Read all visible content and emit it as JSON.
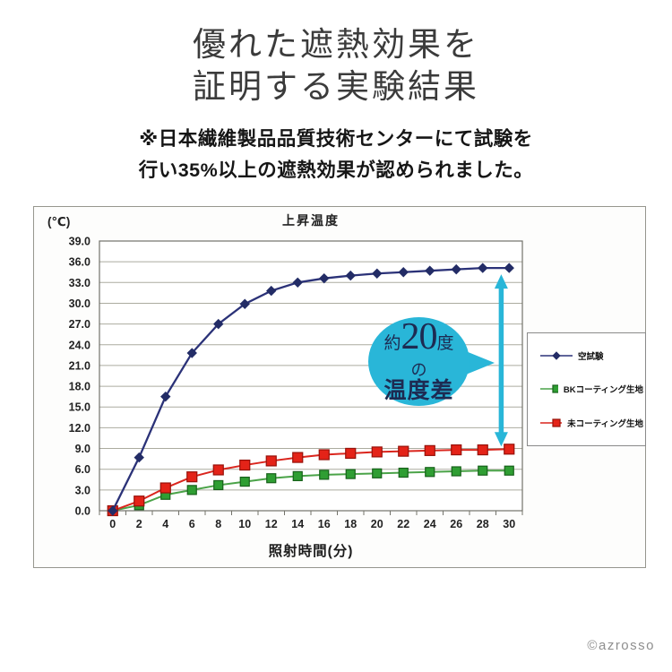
{
  "title": {
    "line1": "優れた遮熱効果を",
    "line2": "証明する実験結果"
  },
  "subtitle": {
    "line1": "※日本繊維製品品質技術センターにて試験を",
    "line2": "行い35%以上の遮熱効果が認められました。"
  },
  "chart_data": {
    "type": "line",
    "title": "上昇温度",
    "y_unit": "(℃)",
    "xlabel": "照射時間(分)",
    "x": [
      0,
      2,
      4,
      6,
      8,
      10,
      12,
      14,
      16,
      18,
      20,
      22,
      24,
      26,
      28,
      30
    ],
    "x_tick_labels": [
      "0",
      "2",
      "4",
      "6",
      "8",
      "10",
      "12",
      "14",
      "16",
      "18",
      "20",
      "22",
      "24",
      "26",
      "28",
      "30"
    ],
    "ylim": [
      0,
      39
    ],
    "y_tick_step": 3,
    "y_tick_labels": [
      "39.0",
      "36.0",
      "33.0",
      "30.0",
      "27.0",
      "24.0",
      "21.0",
      "18.0",
      "15.0",
      "12.0",
      "9.0",
      "6.0",
      "3.0",
      "0.0"
    ],
    "grid": "horizontal",
    "legend_position": "right",
    "series": [
      {
        "name": "空試験",
        "color": "#2b3278",
        "marker": "diamond",
        "marker_fill": "#232c66",
        "marker_stroke": "#232c66",
        "values": [
          0.0,
          7.7,
          16.5,
          22.8,
          27.0,
          29.9,
          31.8,
          33.0,
          33.6,
          34.0,
          34.3,
          34.5,
          34.7,
          34.9,
          35.1,
          35.1
        ]
      },
      {
        "name": "BKコーティング生地",
        "color": "#4aa348",
        "marker": "square",
        "marker_fill": "#2f9e33",
        "marker_stroke": "#17611a",
        "values": [
          0.0,
          0.8,
          2.3,
          3.0,
          3.7,
          4.2,
          4.7,
          5.0,
          5.2,
          5.3,
          5.4,
          5.5,
          5.6,
          5.7,
          5.8,
          5.8
        ]
      },
      {
        "name": "未コーティング生地",
        "color": "#da251d",
        "marker": "square",
        "marker_fill": "#e42318",
        "marker_stroke": "#971109",
        "values": [
          0.0,
          1.4,
          3.3,
          4.9,
          5.9,
          6.6,
          7.2,
          7.7,
          8.1,
          8.3,
          8.5,
          8.6,
          8.7,
          8.8,
          8.8,
          8.9
        ]
      }
    ]
  },
  "annotation": {
    "bubble": {
      "prefix": "約",
      "number": "20",
      "suffix": "度",
      "middle": "の",
      "bottom": "温度差"
    },
    "bubble_color": "#29b6d8",
    "text_color": "#1d2b52",
    "arrow_color": "#29b6d8"
  },
  "footer": {
    "copyright": "©azrosso"
  }
}
